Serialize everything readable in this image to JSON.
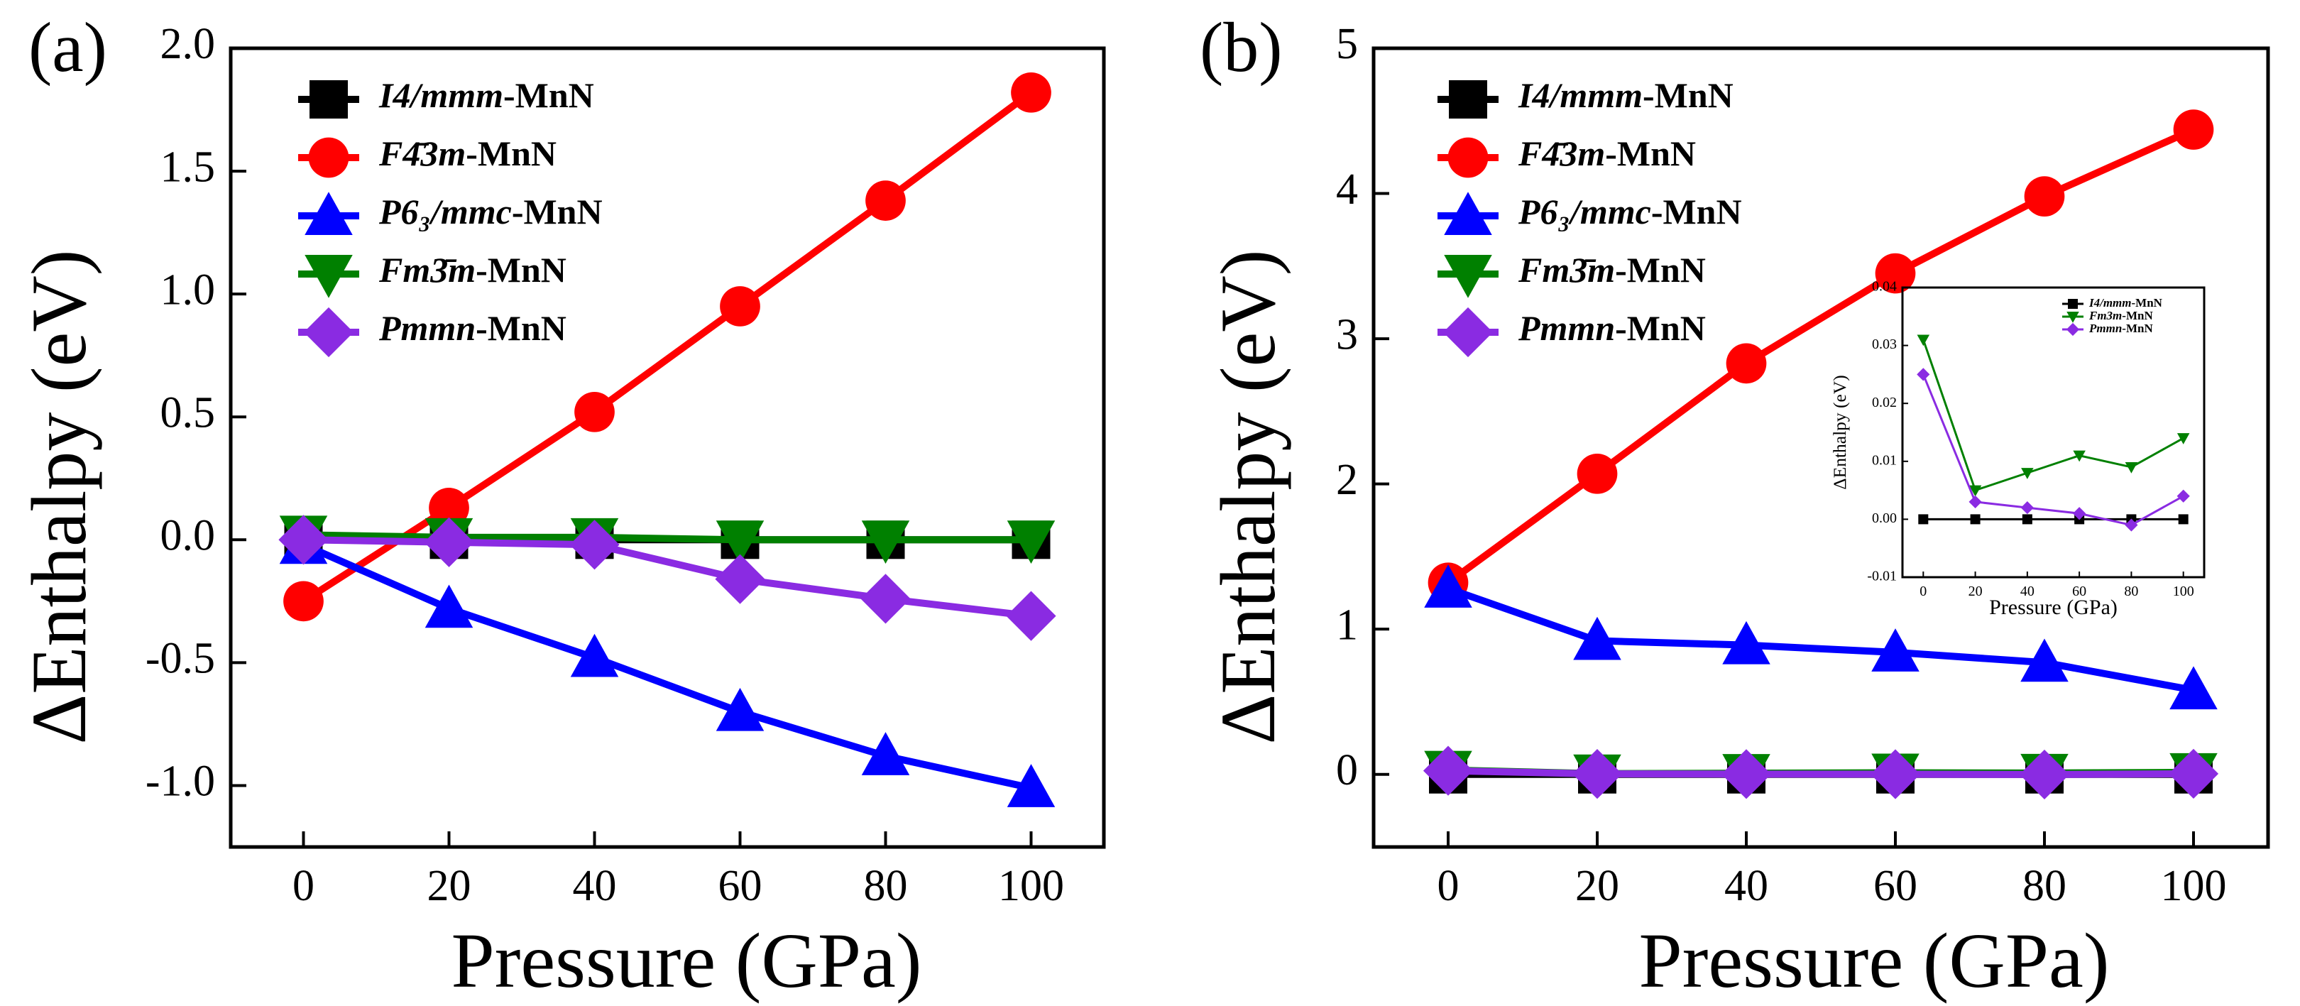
{
  "chart_data": [
    {
      "panel_label": "(a)",
      "type": "line",
      "xlabel": "Pressure (GPa)",
      "ylabel": "ΔEnthalpy (eV)",
      "x": [
        0,
        20,
        40,
        60,
        80,
        100
      ],
      "xlim": [
        -10,
        110
      ],
      "ylim": [
        -1.25,
        2.0
      ],
      "xticks": [
        0,
        20,
        40,
        60,
        80,
        100
      ],
      "yticks": [
        -1.0,
        -0.5,
        0.0,
        0.5,
        1.0,
        1.5,
        2.0
      ],
      "ytick_labels": [
        "-1.0",
        "-0.5",
        "0.0",
        "0.5",
        "1.0",
        "1.5",
        "2.0"
      ],
      "legend": "top-left",
      "series": [
        {
          "name": "I4/mmm-MnN",
          "name_italic": "I4/mmm",
          "name_suffix": "-MnN",
          "marker": "square",
          "color": "#000000",
          "values": [
            0,
            0,
            0,
            0,
            0,
            0
          ]
        },
        {
          "name": "F4̄3m-MnN",
          "name_italic": "F4̄3m",
          "name_suffix": "-MnN",
          "marker": "circle",
          "color": "#ff0000",
          "values": [
            -0.25,
            0.13,
            0.52,
            0.95,
            1.38,
            1.82
          ]
        },
        {
          "name": "P6₃/mmc-MnN",
          "name_italic": "P6₃/mmc",
          "name_suffix": "-MnN",
          "marker": "triangle-up",
          "color": "#0000ff",
          "values": [
            -0.02,
            -0.28,
            -0.48,
            -0.7,
            -0.88,
            -1.01
          ]
        },
        {
          "name": "Fm3̄m-MnN",
          "name_italic": "Fm3̄m",
          "name_suffix": "-MnN",
          "marker": "triangle-down",
          "color": "#008000",
          "values": [
            0.02,
            0.01,
            0.01,
            0.0,
            0.0,
            0.0
          ]
        },
        {
          "name": "Pmmn-MnN",
          "name_italic": "Pmmn",
          "name_suffix": "-MnN",
          "marker": "diamond",
          "color": "#8a2be2",
          "values": [
            0.0,
            -0.01,
            -0.02,
            -0.16,
            -0.24,
            -0.31
          ]
        }
      ]
    },
    {
      "panel_label": "(b)",
      "type": "line",
      "xlabel": "Pressure (GPa)",
      "ylabel": "ΔEnthalpy (eV)",
      "x": [
        0,
        20,
        40,
        60,
        80,
        100
      ],
      "xlim": [
        -10,
        110
      ],
      "ylim": [
        -0.5,
        5.0
      ],
      "xticks": [
        0,
        20,
        40,
        60,
        80,
        100
      ],
      "yticks": [
        0,
        1,
        2,
        3,
        4,
        5
      ],
      "ytick_labels": [
        "0",
        "1",
        "2",
        "3",
        "4",
        "5"
      ],
      "legend": "top-left",
      "series": [
        {
          "name": "I4/mmm-MnN",
          "name_italic": "I4/mmm",
          "name_suffix": "-MnN",
          "marker": "square",
          "color": "#000000",
          "values": [
            0,
            0,
            0,
            0,
            0,
            0
          ]
        },
        {
          "name": "F4̄3m-MnN",
          "name_italic": "F4̄3m",
          "name_suffix": "-MnN",
          "marker": "circle",
          "color": "#ff0000",
          "values": [
            1.32,
            2.07,
            2.83,
            3.45,
            3.98,
            4.44
          ]
        },
        {
          "name": "P6₃/mmc-MnN",
          "name_italic": "P6₃/mmc",
          "name_suffix": "-MnN",
          "marker": "triangle-up",
          "color": "#0000ff",
          "values": [
            1.28,
            0.92,
            0.89,
            0.84,
            0.77,
            0.58
          ]
        },
        {
          "name": "Fm3̄m-MnN",
          "name_italic": "Fm3̄m",
          "name_suffix": "-MnN",
          "marker": "triangle-down",
          "color": "#008000",
          "values": [
            0.03,
            0.005,
            0.008,
            0.011,
            0.009,
            0.014
          ]
        },
        {
          "name": "Pmmn-MnN",
          "name_italic": "Pmmn",
          "name_suffix": "-MnN",
          "marker": "diamond",
          "color": "#8a2be2",
          "values": [
            0.025,
            0.003,
            0.002,
            0.001,
            -0.001,
            0.004
          ]
        }
      ],
      "inset": {
        "type": "line",
        "xlabel": "Pressure (GPa)",
        "ylabel": "ΔEnthalpy (eV)",
        "x": [
          0,
          20,
          40,
          60,
          80,
          100
        ],
        "xlim": [
          -8,
          108
        ],
        "ylim": [
          -0.01,
          0.04
        ],
        "xticks": [
          0,
          20,
          40,
          60,
          80,
          100
        ],
        "yticks": [
          -0.01,
          0.0,
          0.01,
          0.02,
          0.03,
          0.04
        ],
        "ytick_labels": [
          "-0.01",
          "0.00",
          "0.01",
          "0.02",
          "0.03",
          "0.04"
        ],
        "legend": "top-right",
        "series": [
          {
            "name": "I4/mmm-MnN",
            "name_italic": "I4/mmm",
            "name_suffix": "-MnN",
            "marker": "square",
            "color": "#000000",
            "values": [
              0,
              0,
              0,
              0,
              0,
              0
            ]
          },
          {
            "name": "Fm3m-MnN",
            "name_italic": "Fm3m",
            "name_suffix": "-MnN",
            "marker": "triangle-down",
            "color": "#008000",
            "values": [
              0.031,
              0.005,
              0.008,
              0.011,
              0.009,
              0.014
            ]
          },
          {
            "name": "Pmmn-MnN",
            "name_italic": "Pmmn",
            "name_suffix": "-MnN",
            "marker": "diamond",
            "color": "#8a2be2",
            "values": [
              0.025,
              0.003,
              0.002,
              0.001,
              -0.001,
              0.004
            ]
          }
        ]
      }
    }
  ]
}
